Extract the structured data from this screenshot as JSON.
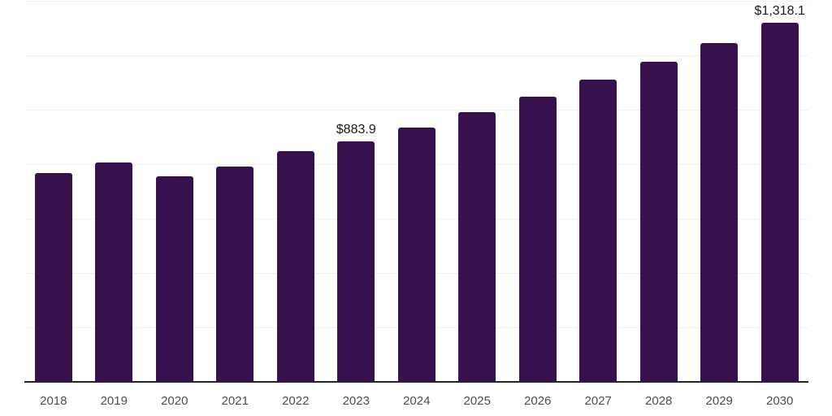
{
  "chart_data": {
    "type": "bar",
    "title": "",
    "xlabel": "",
    "ylabel": "",
    "categories": [
      "2018",
      "2019",
      "2020",
      "2021",
      "2022",
      "2023",
      "2024",
      "2025",
      "2026",
      "2027",
      "2028",
      "2029",
      "2030"
    ],
    "values": [
      767.4,
      807.1,
      756.4,
      791.3,
      846.9,
      883.9,
      935.8,
      990.8,
      1049.0,
      1110.6,
      1175.9,
      1244.9,
      1318.1
    ],
    "data_labels": [
      "",
      "",
      "",
      "",
      "",
      "$883.9",
      "",
      "",
      "",
      "",
      "",
      "",
      "$1,318.1"
    ],
    "ylim": [
      0,
      1400
    ],
    "gridline_values": [
      200,
      400,
      600,
      800,
      1000,
      1200,
      1400
    ],
    "grid": true,
    "legend": false,
    "y_axis_tick_labels_visible": false
  },
  "colors": {
    "background": "#ffffff",
    "bar": "#37114e",
    "gridline": "#f2f2f2",
    "axis_line": "#262626",
    "tick_label": "#4d4d4d",
    "data_label": "#1a1a1a"
  }
}
